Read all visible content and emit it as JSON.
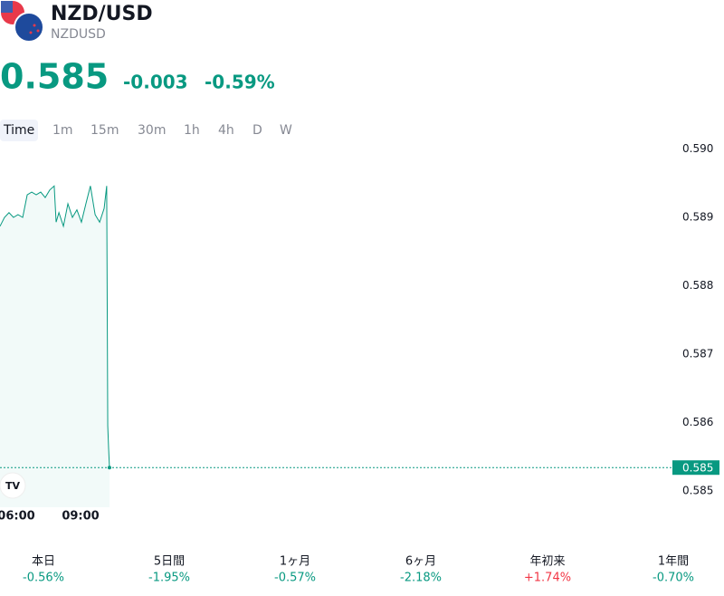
{
  "header": {
    "title": "NZD/USD",
    "symbol": "NZDUSD",
    "price": "0.585",
    "change": "-0.003",
    "change_pct": "-0.59%"
  },
  "tabs": [
    "Time",
    "1m",
    "15m",
    "30m",
    "1h",
    "4h",
    "D",
    "W"
  ],
  "chart_data": {
    "type": "area",
    "color": "#089981",
    "x": [
      5.24,
      5.45,
      5.66,
      5.87,
      6.08,
      6.3,
      6.51,
      6.72,
      6.93,
      7.14,
      7.35,
      7.56,
      7.77,
      7.86,
      7.99,
      8.2,
      8.41,
      8.62,
      8.83,
      9.04,
      9.25,
      9.46,
      9.68,
      9.89,
      10.1,
      10.22,
      10.27,
      10.31,
      10.35
    ],
    "values": [
      0.58887,
      0.589,
      0.58907,
      0.589,
      0.58904,
      0.589,
      0.58933,
      0.58937,
      0.58933,
      0.58937,
      0.58929,
      0.5894,
      0.58946,
      0.58893,
      0.58907,
      0.58887,
      0.5892,
      0.589,
      0.58911,
      0.58893,
      0.5892,
      0.58946,
      0.58904,
      0.58893,
      0.58913,
      0.58946,
      0.58595,
      0.58562,
      0.58534
    ],
    "xlim": [
      5.24,
      36.5
    ],
    "xticks": [
      {
        "value": 6,
        "label": "06:00"
      },
      {
        "value": 9,
        "label": "09:00"
      }
    ],
    "ylim": [
      0.58476,
      0.59006
    ],
    "yticks": [
      {
        "value": 0.59,
        "label": "0.590"
      },
      0.589,
      0.588,
      0.587,
      0.586,
      0.585
    ],
    "last_price": {
      "value": 0.58534,
      "label": "0.585"
    }
  },
  "performance": [
    {
      "label": "本日",
      "value": "-0.56%",
      "color": "#089981"
    },
    {
      "label": "5日間",
      "value": "-1.95%",
      "color": "#089981"
    },
    {
      "label": "1ヶ月",
      "value": "-0.57%",
      "color": "#089981"
    },
    {
      "label": "6ヶ月",
      "value": "-2.18%",
      "color": "#089981"
    },
    {
      "label": "年初来",
      "value": "+1.74%",
      "color": "#f23645"
    },
    {
      "label": "1年間",
      "value": "-0.70%",
      "color": "#089981"
    }
  ]
}
